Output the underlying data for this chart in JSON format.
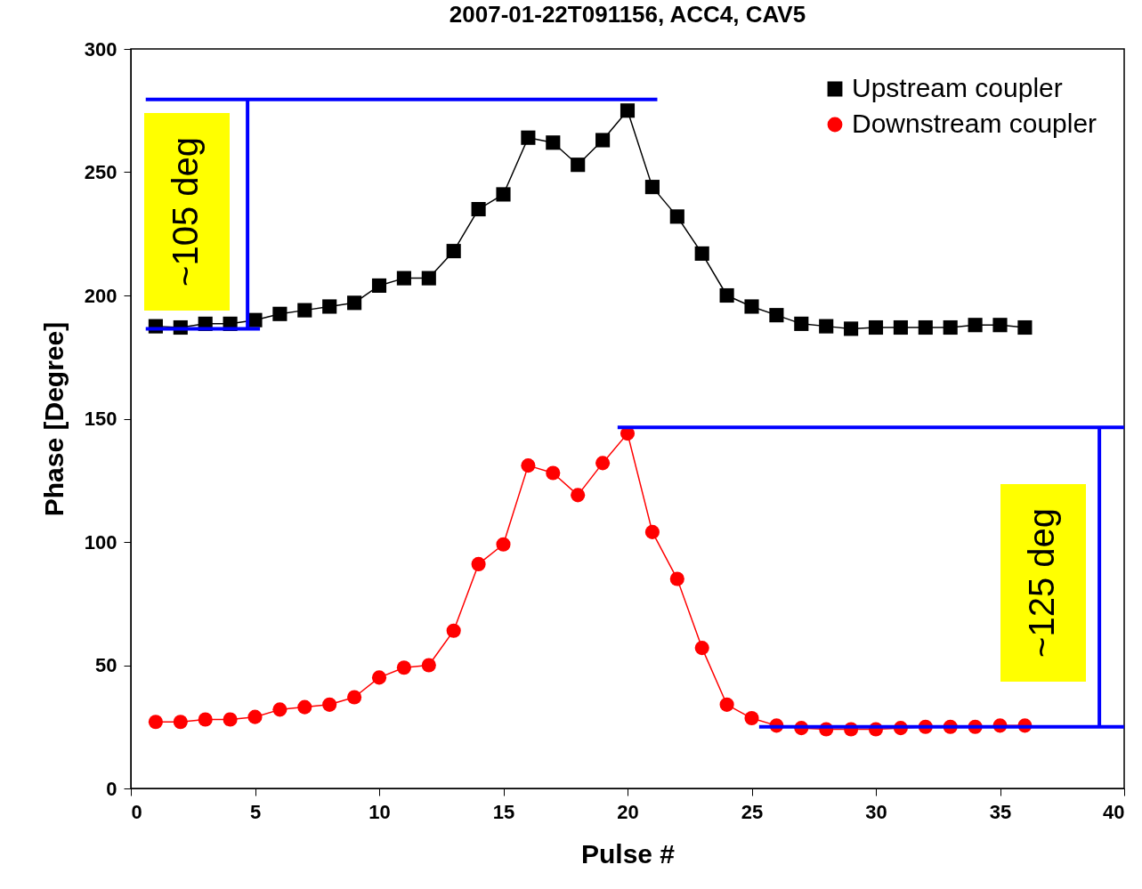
{
  "chart_data": {
    "type": "line",
    "title": "2007-01-22T091156, ACC4, CAV5",
    "xlabel": "Pulse #",
    "ylabel": "Phase [Degree]",
    "xlim": [
      0,
      40
    ],
    "xticks": [
      0,
      5,
      10,
      15,
      20,
      25,
      30,
      35,
      40
    ],
    "ylim": [
      0,
      300
    ],
    "yticks": [
      0,
      50,
      100,
      150,
      200,
      250,
      300
    ],
    "grid": false,
    "legend": "top right",
    "x": [
      1,
      2,
      3,
      4,
      5,
      6,
      7,
      8,
      9,
      10,
      11,
      12,
      13,
      14,
      15,
      16,
      17,
      18,
      19,
      20,
      21,
      22,
      23,
      24,
      25,
      26,
      27,
      28,
      29,
      30,
      31,
      32,
      33,
      34,
      35,
      36
    ],
    "series": [
      {
        "name": "Upstream coupler",
        "color": "#000000",
        "marker": "square",
        "values": [
          187.5,
          187,
          188.5,
          188.5,
          190,
          192.5,
          194,
          195.5,
          197,
          204,
          207,
          207,
          218,
          235,
          241,
          264,
          262,
          253,
          263,
          275,
          244,
          232,
          217,
          200,
          195.5,
          192,
          188.5,
          187.5,
          186.5,
          187,
          187,
          187,
          187,
          188,
          188,
          187
        ]
      },
      {
        "name": "Downstream coupler",
        "color": "#ff0000",
        "marker": "circle",
        "values": [
          27,
          27,
          28,
          28,
          29,
          32,
          33,
          34,
          37,
          45,
          49,
          50,
          64,
          91,
          99,
          131,
          128,
          119,
          132,
          144,
          104,
          85,
          57,
          34,
          28.5,
          25.5,
          24.5,
          24,
          24,
          24,
          24.5,
          25,
          25,
          25,
          25.5,
          25.5
        ]
      },
      {
        "color": "#0000ff",
        "marker": "none",
        "x": [
          0.6,
          21.2
        ],
        "values": [
          279.5,
          279.5
        ]
      },
      {
        "color": "#0000ff",
        "marker": "none",
        "x": [
          0.6,
          5.2
        ],
        "values": [
          186.5,
          186.5
        ]
      },
      {
        "color": "#0000ff",
        "marker": "none",
        "x": [
          19.6,
          40
        ],
        "values": [
          146.5,
          146.5
        ]
      },
      {
        "color": "#0000ff",
        "marker": "none",
        "x": [
          25.3,
          40
        ],
        "values": [
          25,
          25
        ]
      },
      {
        "color": "#0000ff",
        "x": [
          4.7,
          4.7
        ],
        "values": [
          186.5,
          279.5
        ]
      },
      {
        "color": "#0000ff",
        "x": [
          39,
          39
        ],
        "values": [
          25,
          146.5
        ]
      }
    ],
    "annotations": [
      "~105 deg",
      "~125 deg"
    ]
  }
}
